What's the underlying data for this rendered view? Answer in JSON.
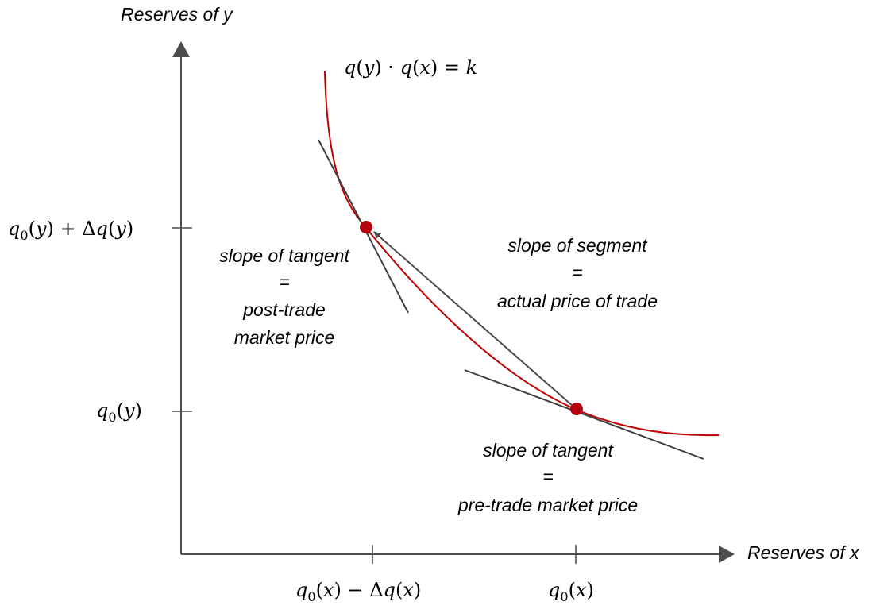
{
  "colors": {
    "axis": "#4d4d4d",
    "curve": "#c00000",
    "point": "#b5000f",
    "tangent": "#404040",
    "text": "#000000"
  },
  "axes": {
    "y_title": "Reserves of y",
    "x_title": "Reserves of x"
  },
  "curve": {
    "equation": {
      "y1": "y",
      "x1": "x",
      "k": "k"
    }
  },
  "tick_labels": {
    "y_upper": {
      "q": "q",
      "sub": "0",
      "y1": "y",
      "delta": "Δ",
      "q2": "q",
      "y2": "y"
    },
    "y_lower": {
      "q": "q",
      "sub": "0",
      "y1": "y"
    },
    "x_left": {
      "q": "q",
      "sub": "0",
      "x1": "x",
      "delta": "Δ",
      "q2": "q",
      "x2": "x"
    },
    "x_right": {
      "q": "q",
      "sub": "0",
      "x1": "x"
    }
  },
  "annotations": {
    "post_trade": {
      "line1": "slope of tangent",
      "line2": "=",
      "line3": "post-trade",
      "line4": "market price"
    },
    "segment": {
      "line1": "slope of segment",
      "line2": "=",
      "line3": "actual price of trade"
    },
    "pre_trade": {
      "line1": "slope of tangent",
      "line2": "=",
      "line3": "pre-trade market price"
    }
  }
}
